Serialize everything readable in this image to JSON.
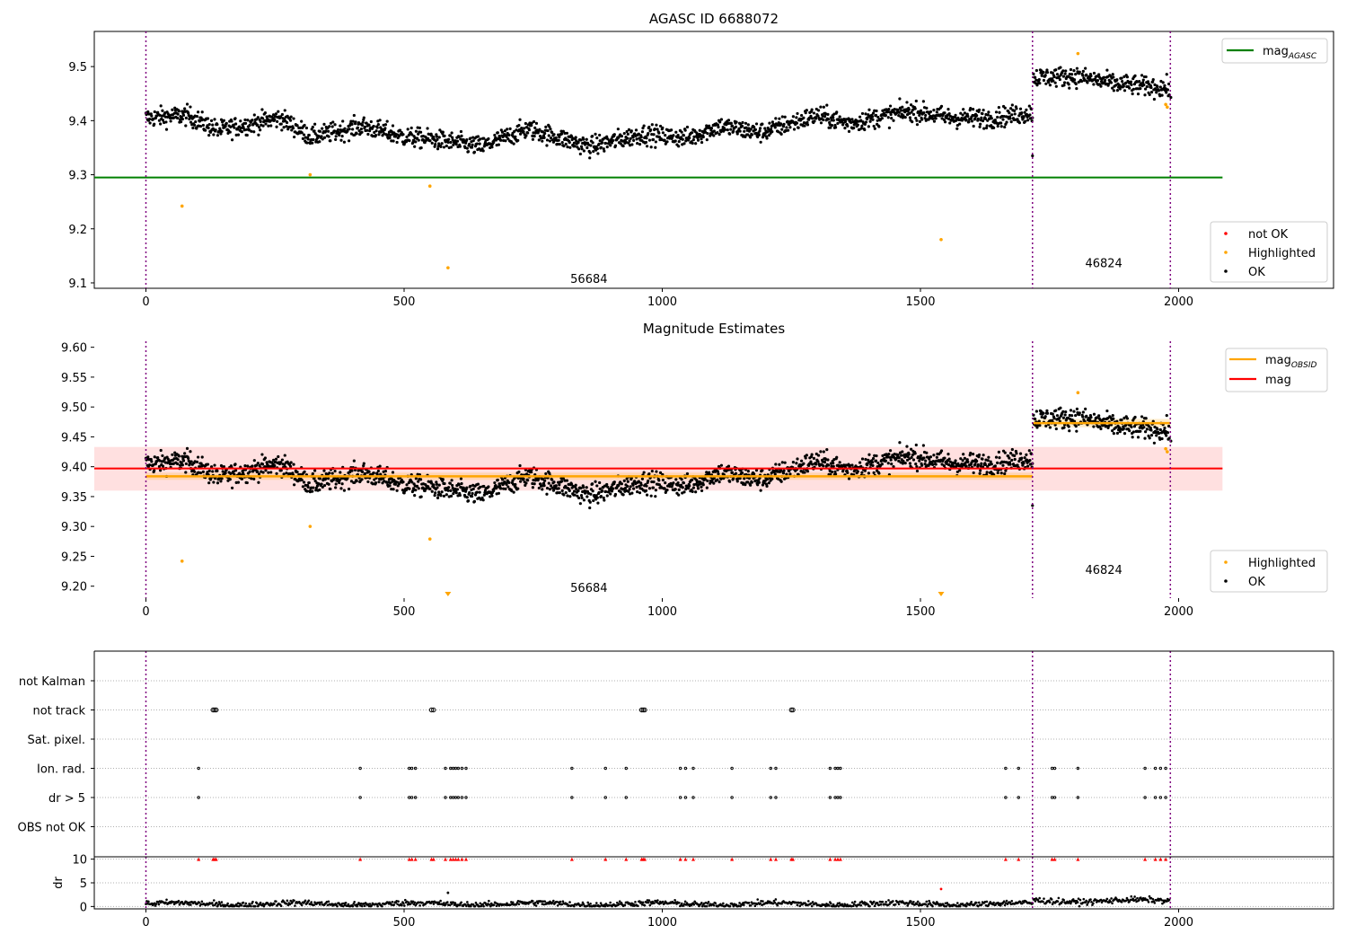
{
  "chart_data": [
    {
      "type": "scatter",
      "title": "AGASC ID 6688072",
      "xlim": [
        -100,
        2300
      ],
      "ylim": [
        9.09,
        9.565
      ],
      "xticks": [
        0,
        500,
        1000,
        1500,
        2000
      ],
      "yticks": [
        9.1,
        9.2,
        9.3,
        9.4,
        9.5
      ],
      "grid": false,
      "vlines": [
        0,
        1717,
        1984
      ],
      "vline_color": "#800080",
      "hline": {
        "name": "mag_AGASC",
        "label_main": "mag",
        "label_sub": "AGASC",
        "y": 9.295,
        "x_range": [
          -100,
          2085
        ],
        "color": "#008000"
      },
      "obs_labels": [
        {
          "text": "56684",
          "x": 858,
          "y": 9.108
        },
        {
          "text": "46824",
          "x": 1855,
          "y": 9.137
        }
      ],
      "legend_top": {
        "placement": "upper right",
        "entries": [
          {
            "label": "mag",
            "sub": "AGASC",
            "color": "#008000",
            "kind": "line"
          }
        ]
      },
      "legend_bottom": {
        "placement": "lower right",
        "entries": [
          {
            "label": "not OK",
            "color": "#ff0000",
            "kind": "dot"
          },
          {
            "label": "Highlighted",
            "color": "#ffa500",
            "kind": "dot"
          },
          {
            "label": "OK",
            "color": "#000000",
            "kind": "dot"
          }
        ]
      },
      "segments": [
        {
          "x_start": 0,
          "x_end": 1717,
          "n_points": 1717,
          "color": "#000000",
          "trend": [
            [
              0,
              9.405
            ],
            [
              80,
              9.41
            ],
            [
              140,
              9.382
            ],
            [
              260,
              9.405
            ],
            [
              320,
              9.37
            ],
            [
              420,
              9.39
            ],
            [
              500,
              9.37
            ],
            [
              560,
              9.365
            ],
            [
              650,
              9.352
            ],
            [
              740,
              9.385
            ],
            [
              860,
              9.352
            ],
            [
              960,
              9.375
            ],
            [
              1050,
              9.368
            ],
            [
              1110,
              9.39
            ],
            [
              1190,
              9.378
            ],
            [
              1300,
              9.41
            ],
            [
              1360,
              9.395
            ],
            [
              1480,
              9.418
            ],
            [
              1560,
              9.405
            ],
            [
              1640,
              9.405
            ],
            [
              1717,
              9.415
            ]
          ]
        },
        {
          "x_start": 1719,
          "x_end": 1982,
          "n_points": 263,
          "color": "#000000",
          "trend": [
            [
              1719,
              9.48
            ],
            [
              1800,
              9.482
            ],
            [
              1880,
              9.468
            ],
            [
              1982,
              9.46
            ]
          ]
        }
      ],
      "highlighted_points": [
        {
          "x": 70,
          "y": 9.242
        },
        {
          "x": 318,
          "y": 9.3
        },
        {
          "x": 550,
          "y": 9.279
        },
        {
          "x": 585,
          "y": 9.128
        },
        {
          "x": 1540,
          "y": 9.18
        },
        {
          "x": 1805,
          "y": 9.524
        },
        {
          "x": 1975,
          "y": 9.43
        },
        {
          "x": 1978,
          "y": 9.425
        }
      ],
      "extra_ok_points": [
        {
          "x": 1717,
          "y": 9.335
        },
        {
          "x": 1985,
          "y": 9.443
        }
      ]
    },
    {
      "type": "scatter",
      "title": "Magnitude Estimates",
      "xlim": [
        -100,
        2300
      ],
      "ylim": [
        9.18,
        9.61
      ],
      "xticks": [
        0,
        500,
        1000,
        1500,
        2000
      ],
      "yticks": [
        9.2,
        9.25,
        9.3,
        9.35,
        9.4,
        9.45,
        9.5,
        9.55,
        9.6
      ],
      "grid": false,
      "vlines": [
        0,
        1717,
        1984
      ],
      "mag": {
        "y": 9.397,
        "band": [
          9.36,
          9.433
        ],
        "x_range": [
          -100,
          2085
        ],
        "color": "#ff0000"
      },
      "mag_obsid": [
        {
          "y": 9.384,
          "band": [
            9.378,
            9.39
          ],
          "x_range": [
            0,
            1717
          ]
        },
        {
          "y": 9.473,
          "band": [
            9.466,
            9.48
          ],
          "x_range": [
            1719,
            1984
          ]
        }
      ],
      "obs_labels": [
        {
          "text": "56684",
          "x": 858,
          "y": 9.198
        },
        {
          "text": "46824",
          "x": 1855,
          "y": 9.228
        }
      ],
      "legend_top": {
        "placement": "upper right",
        "entries": [
          {
            "label": "mag",
            "sub": "OBSID",
            "color": "#ffa500",
            "kind": "line"
          },
          {
            "label": "mag",
            "sub": "",
            "color": "#ff0000",
            "kind": "line"
          }
        ]
      },
      "legend_bottom": {
        "placement": "lower right",
        "entries": [
          {
            "label": "Highlighted",
            "color": "#ffa500",
            "kind": "dot"
          },
          {
            "label": "OK",
            "color": "#000000",
            "kind": "dot"
          }
        ]
      },
      "highlighted_points": [
        {
          "x": 70,
          "y": 9.242
        },
        {
          "x": 318,
          "y": 9.3
        },
        {
          "x": 550,
          "y": 9.279
        },
        {
          "x": 1805,
          "y": 9.524
        },
        {
          "x": 1975,
          "y": 9.43
        },
        {
          "x": 1978,
          "y": 9.425
        }
      ],
      "off_scale_markers": [
        {
          "x": 585
        },
        {
          "x": 1540
        }
      ]
    },
    {
      "type": "scatter",
      "xlim": [
        -100,
        2300
      ],
      "xticks": [
        0,
        500,
        1000,
        1500,
        2000
      ],
      "categories": [
        "not Kalman",
        "not track",
        "Sat. pixel.",
        "Ion. rad.",
        "dr > 5",
        "OBS not OK"
      ],
      "vlines": [
        0,
        1717,
        1984
      ],
      "flags": {
        "not Kalman": [],
        "not track": [
          130,
          133,
          136,
          553,
          557,
          960,
          963,
          966,
          1250,
          1253
        ],
        "Sat. pixel.": [],
        "Ion. rad.": [
          102,
          415,
          510,
          515,
          522,
          580,
          590,
          595,
          600,
          605,
          612,
          620,
          825,
          890,
          930,
          1035,
          1045,
          1060,
          1135,
          1210,
          1220,
          1325,
          1335,
          1340,
          1345,
          1665,
          1690,
          1755,
          1760,
          1805,
          1935,
          1955,
          1965,
          1975
        ],
        "dr > 5": [
          102,
          415,
          510,
          515,
          522,
          580,
          590,
          595,
          600,
          605,
          612,
          620,
          825,
          890,
          930,
          1035,
          1045,
          1060,
          1135,
          1210,
          1220,
          1325,
          1335,
          1340,
          1345,
          1665,
          1690,
          1755,
          1760,
          1805,
          1935,
          1955,
          1965,
          1975
        ],
        "OBS not OK": []
      }
    },
    {
      "type": "scatter",
      "ylabel": "dr",
      "xlim": [
        -100,
        2300
      ],
      "ylim": [
        -0.5,
        10.5
      ],
      "xticks": [
        0,
        500,
        1000,
        1500,
        2000
      ],
      "yticks": [
        0,
        5,
        10
      ],
      "vlines": [
        0,
        1717,
        1984
      ],
      "capped_points": {
        "y": 10,
        "color": "#ff0000",
        "x": [
          102,
          130,
          133,
          136,
          415,
          510,
          515,
          522,
          553,
          557,
          580,
          590,
          595,
          600,
          605,
          612,
          620,
          825,
          890,
          930,
          960,
          963,
          966,
          1035,
          1045,
          1060,
          1135,
          1210,
          1220,
          1250,
          1253,
          1325,
          1335,
          1340,
          1345,
          1665,
          1690,
          1755,
          1760,
          1805,
          1935,
          1955,
          1965,
          1975
        ]
      },
      "outliers": [
        {
          "x": 585,
          "y": 2.9,
          "color": "#000000"
        },
        {
          "x": 1540,
          "y": 3.7,
          "color": "#ff0000"
        }
      ],
      "baseline_segments": [
        {
          "x_start": 0,
          "x_end": 1717,
          "mean": 0.55
        },
        {
          "x_start": 1719,
          "x_end": 1982,
          "mean": 1.2
        }
      ]
    }
  ]
}
